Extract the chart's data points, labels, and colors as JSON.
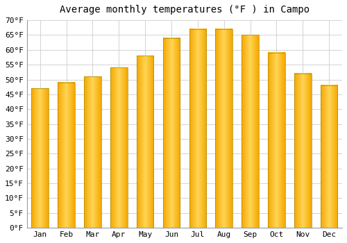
{
  "title": "Average monthly temperatures (°F ) in Campo",
  "months": [
    "Jan",
    "Feb",
    "Mar",
    "Apr",
    "May",
    "Jun",
    "Jul",
    "Aug",
    "Sep",
    "Oct",
    "Nov",
    "Dec"
  ],
  "values": [
    47,
    49,
    51,
    54,
    58,
    64,
    67,
    67,
    65,
    59,
    52,
    48
  ],
  "bar_color_center": "#FFD555",
  "bar_color_edge": "#F5A800",
  "bar_outline_color": "#888800",
  "ylim": [
    0,
    70
  ],
  "ytick_step": 5,
  "background_color": "#ffffff",
  "grid_color": "#cccccc",
  "title_fontsize": 10,
  "tick_fontsize": 8
}
